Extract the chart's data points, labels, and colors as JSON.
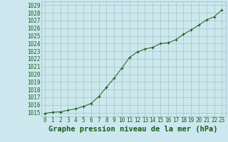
{
  "x": [
    0,
    1,
    2,
    3,
    4,
    5,
    6,
    7,
    8,
    9,
    10,
    11,
    12,
    13,
    14,
    15,
    16,
    17,
    18,
    19,
    20,
    21,
    22,
    23
  ],
  "y": [
    1014.9,
    1015.05,
    1015.1,
    1015.3,
    1015.5,
    1015.8,
    1016.2,
    1017.1,
    1018.3,
    1019.5,
    1020.8,
    1022.2,
    1022.9,
    1023.3,
    1023.5,
    1024.0,
    1024.1,
    1024.5,
    1025.2,
    1025.8,
    1026.4,
    1027.1,
    1027.5,
    1028.4
  ],
  "line_color": "#1a5c1a",
  "marker": "+",
  "marker_color": "#1a5c1a",
  "bg_color": "#cce8ee",
  "grid_color": "#99bbbb",
  "title": "Graphe pression niveau de la mer (hPa)",
  "title_color": "#1a5c1a",
  "tick_color": "#1a5c1a",
  "ylim": [
    1014.5,
    1029.5
  ],
  "yticks": [
    1015,
    1016,
    1017,
    1018,
    1019,
    1020,
    1021,
    1022,
    1023,
    1024,
    1025,
    1026,
    1027,
    1028,
    1029
  ],
  "xticks": [
    0,
    1,
    2,
    3,
    4,
    5,
    6,
    7,
    8,
    9,
    10,
    11,
    12,
    13,
    14,
    15,
    16,
    17,
    18,
    19,
    20,
    21,
    22,
    23
  ],
  "tick_fontsize": 5.5,
  "title_fontsize": 7.5,
  "title_fontweight": "bold",
  "linewidth": 0.7,
  "markersize": 3.5,
  "markeredgewidth": 0.8
}
